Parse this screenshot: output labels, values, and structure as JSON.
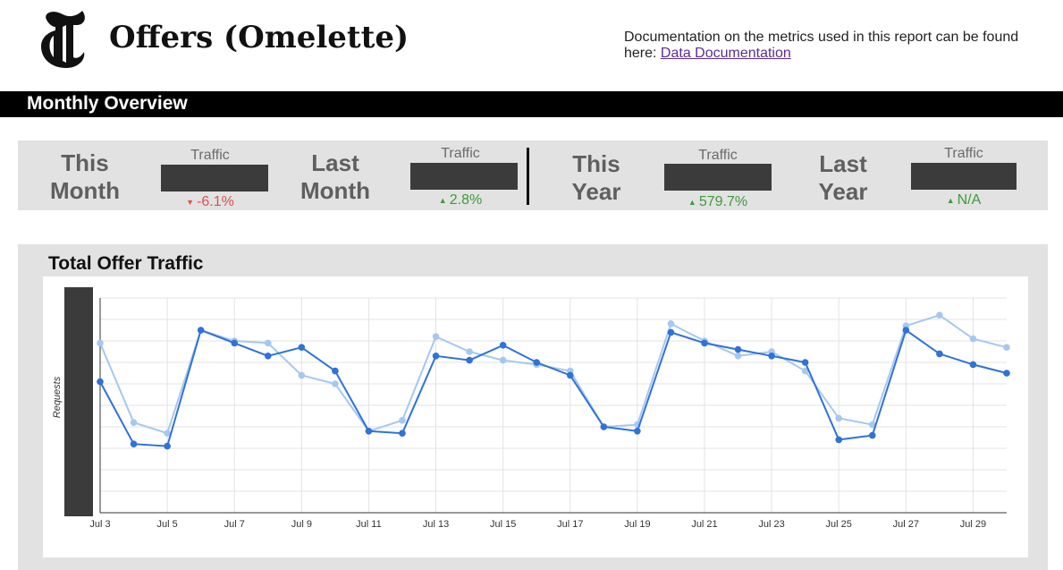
{
  "header": {
    "title": "Offers (Omelette)",
    "doc_text": "Documentation on the metrics used in this report can be found here:",
    "doc_link": "Data Documentation"
  },
  "section": {
    "title": "Monthly Overview"
  },
  "kpis": [
    {
      "period": [
        "This",
        "Month"
      ],
      "metric_label": "Traffic",
      "value": "",
      "change": "-6.1%",
      "direction": "down",
      "color": "#e0514a"
    },
    {
      "period": [
        "Last",
        "Month"
      ],
      "metric_label": "Traffic",
      "value": "",
      "change": "2.8%",
      "direction": "up",
      "color": "#3f9a3a"
    },
    {
      "period": [
        "This",
        "Year"
      ],
      "metric_label": "Traffic",
      "value": "",
      "change": "579.7%",
      "direction": "up",
      "color": "#3f9a3a"
    },
    {
      "period": [
        "Last",
        "Year"
      ],
      "metric_label": "Traffic",
      "value": "",
      "change": "N/A",
      "direction": "up",
      "color": "#3f9a3a"
    }
  ],
  "chart_data": {
    "type": "line",
    "title": "Total Offer Traffic",
    "ylabel": "Requests",
    "xlabel": "",
    "ylim": [
      0,
      10
    ],
    "y_tick_labels_redacted": true,
    "grid": true,
    "legend": "none",
    "x": [
      "Jul 3",
      "Jul 4",
      "Jul 5",
      "Jul 6",
      "Jul 7",
      "Jul 8",
      "Jul 9",
      "Jul 10",
      "Jul 11",
      "Jul 12",
      "Jul 13",
      "Jul 14",
      "Jul 15",
      "Jul 16",
      "Jul 17",
      "Jul 18",
      "Jul 19",
      "Jul 20",
      "Jul 21",
      "Jul 22",
      "Jul 23",
      "Jul 24",
      "Jul 25",
      "Jul 26",
      "Jul 27",
      "Jul 28",
      "Jul 29",
      "Jul 30"
    ],
    "x_tick_labels": [
      "Jul 3",
      "Jul 5",
      "Jul 7",
      "Jul 9",
      "Jul 11",
      "Jul 13",
      "Jul 15",
      "Jul 17",
      "Jul 19",
      "Jul 21",
      "Jul 23",
      "Jul 25",
      "Jul 27",
      "Jul 29"
    ],
    "series": [
      {
        "color": "#2f72d8",
        "values": [
          6.1,
          3.2,
          3.1,
          8.5,
          7.9,
          7.3,
          7.7,
          6.6,
          3.8,
          3.7,
          7.3,
          7.1,
          7.8,
          7.0,
          6.4,
          4.0,
          3.8,
          8.4,
          7.9,
          7.6,
          7.3,
          7.0,
          3.4,
          3.6,
          8.5,
          7.4,
          6.9,
          6.5
        ]
      },
      {
        "color": "#a6c8f0",
        "values": [
          7.9,
          4.2,
          3.7,
          8.5,
          8.0,
          7.9,
          6.4,
          6.0,
          3.8,
          4.3,
          8.2,
          7.5,
          7.1,
          6.9,
          6.6,
          4.0,
          4.1,
          8.8,
          8.0,
          7.3,
          7.5,
          6.6,
          4.4,
          4.1,
          8.7,
          9.2,
          8.1,
          7.7
        ]
      }
    ]
  }
}
